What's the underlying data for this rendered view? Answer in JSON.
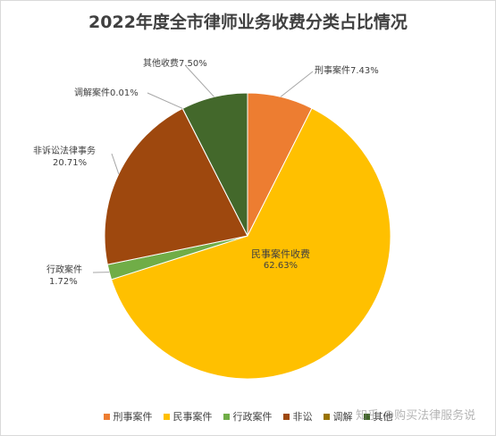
{
  "chart_data": {
    "type": "pie",
    "title": "2022年度全市律师业务收费分类占比情况",
    "slices": [
      {
        "legend": "刑事案件",
        "label": "刑事案件",
        "value_label": "7.43%",
        "value": 7.43,
        "color": "#ed7d31"
      },
      {
        "legend": "民事案件",
        "label": "民事案件收费",
        "value_label": "62.63%",
        "value": 62.63,
        "color": "#ffc000"
      },
      {
        "legend": "行政案件",
        "label": "行政案件",
        "value_label": "1.72%",
        "value": 1.72,
        "color": "#70ad47"
      },
      {
        "legend": "非讼",
        "label": "非诉讼法律事务",
        "value_label": "20.71%",
        "value": 20.71,
        "color": "#9e480e"
      },
      {
        "legend": "调解",
        "label": "调解案件",
        "value_label": "0.01%",
        "value": 0.01,
        "color": "#997300"
      },
      {
        "legend": "其他",
        "label": "其他收费",
        "value_label": "7.50%",
        "value": 7.5,
        "color": "#43682b"
      }
    ],
    "legend_position": "bottom"
  },
  "watermark": "知乎 @购买法律服务说"
}
